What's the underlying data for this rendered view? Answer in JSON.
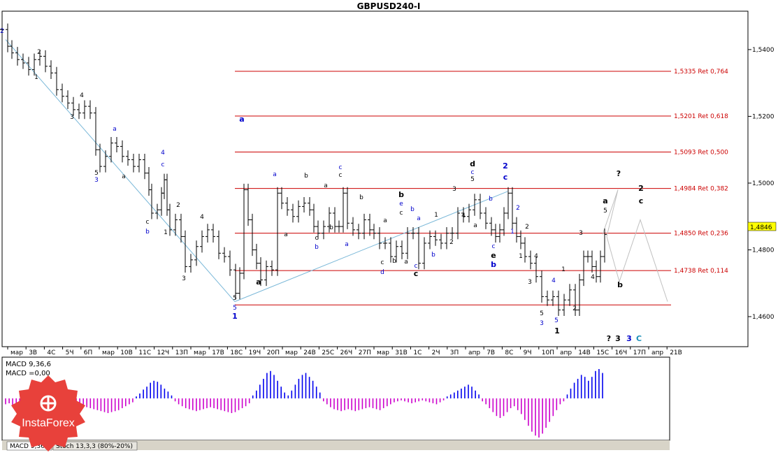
{
  "title": "GBPUSD240-I",
  "last_price": "1,4846",
  "colors": {
    "background": "#ffffff",
    "fib_line": "#cc0000",
    "trend_line": "#7ab8d8",
    "label_black": "#000000",
    "label_blue": "#0000cc",
    "label_cyan": "#1a8fb8",
    "projection": "#c0c0c0",
    "macd_positive": "#0000ee",
    "macd_negative": "#cc00cc",
    "logo": "#e8413b"
  },
  "chart_data": {
    "type": "line",
    "title": "GBPUSD240-I",
    "ylim": [
      1.451,
      1.5515
    ],
    "y_ticks": [
      "1,5400",
      "1,5200",
      "1,5000",
      "1,4800",
      "1,4600"
    ],
    "y_tick_values": [
      1.54,
      1.52,
      1.5,
      1.48,
      1.46
    ],
    "x_tick_labels": [
      "мар",
      "3В",
      "4С",
      "5Ч",
      "6П",
      "мар",
      "10В",
      "11С",
      "12Ч",
      "13П",
      "мар",
      "17В",
      "18С",
      "19Ч",
      "20П",
      "мар",
      "24В",
      "25С",
      "26Ч",
      "27П",
      "мар",
      "31В",
      "1С",
      "2Ч",
      "3П",
      "апр",
      "7В",
      "8С",
      "9Ч",
      "10П",
      "апр",
      "14В",
      "15С",
      "16Ч",
      "17П",
      "апр",
      "21В"
    ],
    "fib_levels": [
      {
        "value": 1.5335,
        "label": "1,5335 Ret 0,764"
      },
      {
        "value": 1.5201,
        "label": "1,5201 Ret 0,618"
      },
      {
        "value": 1.5093,
        "label": "1,5093 Ret 0,500"
      },
      {
        "value": 1.4984,
        "label": "1,4984 Ret 0,382"
      },
      {
        "value": 1.485,
        "label": "1,4850 Ret 0,236"
      },
      {
        "value": 1.4738,
        "label": "1,4738 Ret 0,114"
      },
      {
        "value": 1.4635,
        "label": ""
      }
    ],
    "price_path": [
      [
        0,
        1.546
      ],
      [
        8,
        1.541
      ],
      [
        14,
        1.539
      ],
      [
        22,
        1.537
      ],
      [
        30,
        1.536
      ],
      [
        38,
        1.534
      ],
      [
        46,
        1.537
      ],
      [
        54,
        1.538
      ],
      [
        62,
        1.535
      ],
      [
        70,
        1.533
      ],
      [
        78,
        1.528
      ],
      [
        86,
        1.526
      ],
      [
        94,
        1.524
      ],
      [
        102,
        1.522
      ],
      [
        110,
        1.521
      ],
      [
        118,
        1.523
      ],
      [
        126,
        1.521
      ],
      [
        134,
        1.51
      ],
      [
        140,
        1.505
      ],
      [
        148,
        1.508
      ],
      [
        156,
        1.512
      ],
      [
        164,
        1.511
      ],
      [
        172,
        1.508
      ],
      [
        180,
        1.507
      ],
      [
        188,
        1.505
      ],
      [
        196,
        1.507
      ],
      [
        204,
        1.503
      ],
      [
        210,
        1.498
      ],
      [
        214,
        1.491
      ],
      [
        222,
        1.492
      ],
      [
        228,
        1.497
      ],
      [
        232,
        1.501
      ],
      [
        236,
        1.492
      ],
      [
        240,
        1.486
      ],
      [
        248,
        1.489
      ],
      [
        256,
        1.484
      ],
      [
        262,
        1.475
      ],
      [
        270,
        1.477
      ],
      [
        278,
        1.481
      ],
      [
        286,
        1.484
      ],
      [
        294,
        1.486
      ],
      [
        302,
        1.484
      ],
      [
        310,
        1.479
      ],
      [
        318,
        1.478
      ],
      [
        326,
        1.474
      ],
      [
        334,
        1.467
      ],
      [
        340,
        1.473
      ],
      [
        346,
        1.498
      ],
      [
        352,
        1.489
      ],
      [
        358,
        1.48
      ],
      [
        364,
        1.476
      ],
      [
        370,
        1.471
      ],
      [
        378,
        1.475
      ],
      [
        386,
        1.474
      ],
      [
        394,
        1.497
      ],
      [
        400,
        1.494
      ],
      [
        408,
        1.492
      ],
      [
        416,
        1.49
      ],
      [
        424,
        1.493
      ],
      [
        432,
        1.494
      ],
      [
        440,
        1.492
      ],
      [
        446,
        1.487
      ],
      [
        452,
        1.485
      ],
      [
        460,
        1.487
      ],
      [
        468,
        1.491
      ],
      [
        476,
        1.487
      ],
      [
        482,
        1.487
      ],
      [
        488,
        1.497
      ],
      [
        494,
        1.488
      ],
      [
        502,
        1.486
      ],
      [
        510,
        1.485
      ],
      [
        518,
        1.489
      ],
      [
        526,
        1.486
      ],
      [
        532,
        1.485
      ],
      [
        540,
        1.482
      ],
      [
        548,
        1.482
      ],
      [
        556,
        1.478
      ],
      [
        564,
        1.481
      ],
      [
        572,
        1.479
      ],
      [
        580,
        1.485
      ],
      [
        588,
        1.485
      ],
      [
        596,
        1.476
      ],
      [
        604,
        1.482
      ],
      [
        612,
        1.484
      ],
      [
        620,
        1.483
      ],
      [
        628,
        1.482
      ],
      [
        636,
        1.485
      ],
      [
        644,
        1.485
      ],
      [
        652,
        1.491
      ],
      [
        660,
        1.49
      ],
      [
        668,
        1.492
      ],
      [
        676,
        1.495
      ],
      [
        684,
        1.491
      ],
      [
        692,
        1.488
      ],
      [
        700,
        1.486
      ],
      [
        706,
        1.484
      ],
      [
        712,
        1.486
      ],
      [
        718,
        1.491
      ],
      [
        724,
        1.497
      ],
      [
        730,
        1.488
      ],
      [
        736,
        1.484
      ],
      [
        742,
        1.482
      ],
      [
        748,
        1.478
      ],
      [
        756,
        1.476
      ],
      [
        764,
        1.472
      ],
      [
        772,
        1.466
      ],
      [
        780,
        1.465
      ],
      [
        788,
        1.466
      ],
      [
        796,
        1.462
      ],
      [
        804,
        1.465
      ],
      [
        812,
        1.468
      ],
      [
        820,
        1.462
      ],
      [
        826,
        1.471
      ],
      [
        832,
        1.478
      ],
      [
        838,
        1.478
      ],
      [
        844,
        1.475
      ],
      [
        850,
        1.472
      ],
      [
        856,
        1.478
      ],
      [
        862,
        1.4846
      ]
    ],
    "macd_label": "MACD 9,36,6",
    "macd_value_label": "MACD =0,00",
    "macd_values": [
      -6,
      -5,
      -7,
      -6,
      -8,
      -9,
      -10,
      -9,
      -11,
      -12,
      -13,
      -12,
      -14,
      -15,
      -16,
      -15,
      -14,
      -13,
      -12,
      -11,
      -10,
      -9,
      -8,
      -9,
      -10,
      -11,
      -12,
      -13,
      -14,
      -15,
      -14,
      -13,
      -12,
      -10,
      -8,
      -6,
      -4,
      2,
      5,
      9,
      12,
      16,
      18,
      17,
      14,
      10,
      7,
      3,
      -3,
      -6,
      -8,
      -10,
      -11,
      -12,
      -13,
      -12,
      -11,
      -10,
      -9,
      -10,
      -11,
      -12,
      -13,
      -14,
      -15,
      -14,
      -12,
      -10,
      -8,
      -5,
      3,
      8,
      14,
      20,
      26,
      28,
      24,
      18,
      12,
      6,
      3,
      8,
      14,
      20,
      24,
      26,
      22,
      18,
      12,
      6,
      -3,
      -6,
      -9,
      -11,
      -12,
      -13,
      -12,
      -11,
      -12,
      -13,
      -12,
      -11,
      -10,
      -9,
      -10,
      -11,
      -12,
      -10,
      -8,
      -6,
      -4,
      -3,
      -2,
      -3,
      -4,
      -5,
      -4,
      -3,
      -2,
      -3,
      -4,
      -5,
      -6,
      -4,
      -2,
      2,
      4,
      6,
      8,
      10,
      12,
      14,
      12,
      8,
      4,
      -3,
      -6,
      -10,
      -14,
      -18,
      -20,
      -18,
      -14,
      -10,
      -8,
      -12,
      -16,
      -22,
      -28,
      -34,
      -38,
      -40,
      -36,
      -30,
      -24,
      -18,
      -12,
      -6,
      -3,
      4,
      10,
      16,
      20,
      24,
      22,
      18,
      22,
      28,
      30,
      26
    ],
    "indicator_tabs": [
      "MACD 9,36,6",
      "Stoch 13,3,3 (80%-20%)"
    ]
  },
  "wave_labels": [
    {
      "t": "2",
      "c": "blue",
      "x": 3,
      "y": 47,
      "b": false
    },
    {
      "t": "2",
      "c": "black",
      "x": 56,
      "y": 77,
      "b": false
    },
    {
      "t": "1",
      "c": "black",
      "x": 52,
      "y": 113,
      "b": false
    },
    {
      "t": "4",
      "c": "black",
      "x": 117,
      "y": 139,
      "b": false
    },
    {
      "t": "3",
      "c": "black",
      "x": 103,
      "y": 170,
      "b": false
    },
    {
      "t": "a",
      "c": "blue",
      "x": 164,
      "y": 187,
      "b": false
    },
    {
      "t": "5",
      "c": "black",
      "x": 138,
      "y": 250,
      "b": false
    },
    {
      "t": "3",
      "c": "blue",
      "x": 138,
      "y": 260,
      "b": false
    },
    {
      "t": "a",
      "c": "black",
      "x": 177,
      "y": 255,
      "b": false
    },
    {
      "t": "4",
      "c": "blue",
      "x": 233,
      "y": 221,
      "b": false
    },
    {
      "t": "c",
      "c": "blue",
      "x": 233,
      "y": 238,
      "b": false
    },
    {
      "t": "2",
      "c": "black",
      "x": 255,
      "y": 296,
      "b": false
    },
    {
      "t": "c",
      "c": "black",
      "x": 211,
      "y": 320,
      "b": false
    },
    {
      "t": "b",
      "c": "blue",
      "x": 211,
      "y": 334,
      "b": false
    },
    {
      "t": "1",
      "c": "black",
      "x": 237,
      "y": 335,
      "b": false
    },
    {
      "t": "4",
      "c": "black",
      "x": 289,
      "y": 313,
      "b": false
    },
    {
      "t": "3",
      "c": "black",
      "x": 263,
      "y": 401,
      "b": false
    },
    {
      "t": "a",
      "c": "blue",
      "x": 346,
      "y": 174,
      "b": true
    },
    {
      "t": "5",
      "c": "black",
      "x": 336,
      "y": 429,
      "b": false
    },
    {
      "t": "5",
      "c": "blue",
      "x": 336,
      "y": 443,
      "b": false
    },
    {
      "t": "1",
      "c": "blue",
      "x": 336,
      "y": 456,
      "b": true
    },
    {
      "t": "a",
      "c": "black",
      "x": 370,
      "y": 407,
      "b": true
    },
    {
      "t": "a",
      "c": "blue",
      "x": 393,
      "y": 252,
      "b": false
    },
    {
      "t": "b",
      "c": "black",
      "x": 438,
      "y": 254,
      "b": false
    },
    {
      "t": "a",
      "c": "black",
      "x": 409,
      "y": 338,
      "b": false
    },
    {
      "t": "c",
      "c": "black",
      "x": 453,
      "y": 343,
      "b": false
    },
    {
      "t": "b",
      "c": "blue",
      "x": 453,
      "y": 356,
      "b": false
    },
    {
      "t": "a",
      "c": "black",
      "x": 466,
      "y": 268,
      "b": false
    },
    {
      "t": "c",
      "c": "blue",
      "x": 487,
      "y": 242,
      "b": false
    },
    {
      "t": "c",
      "c": "black",
      "x": 487,
      "y": 253,
      "b": false
    },
    {
      "t": "b",
      "c": "black",
      "x": 474,
      "y": 328,
      "b": false
    },
    {
      "t": "a",
      "c": "blue",
      "x": 496,
      "y": 352,
      "b": false
    },
    {
      "t": "b",
      "c": "black",
      "x": 517,
      "y": 285,
      "b": false
    },
    {
      "t": "a",
      "c": "black",
      "x": 551,
      "y": 318,
      "b": false
    },
    {
      "t": "c",
      "c": "black",
      "x": 547,
      "y": 378,
      "b": false
    },
    {
      "t": "d",
      "c": "blue",
      "x": 547,
      "y": 392,
      "b": false
    },
    {
      "t": "b",
      "c": "black",
      "x": 564,
      "y": 376,
      "b": false
    },
    {
      "t": "b",
      "c": "black",
      "x": 574,
      "y": 282,
      "b": true
    },
    {
      "t": "e",
      "c": "blue",
      "x": 574,
      "y": 294,
      "b": false
    },
    {
      "t": "c",
      "c": "black",
      "x": 574,
      "y": 307,
      "b": false
    },
    {
      "t": "b",
      "c": "blue",
      "x": 590,
      "y": 302,
      "b": false
    },
    {
      "t": "a",
      "c": "blue",
      "x": 599,
      "y": 315,
      "b": false
    },
    {
      "t": "1",
      "c": "black",
      "x": 624,
      "y": 310,
      "b": false
    },
    {
      "t": "a",
      "c": "black",
      "x": 581,
      "y": 377,
      "b": false
    },
    {
      "t": "c",
      "c": "blue",
      "x": 595,
      "y": 383,
      "b": false
    },
    {
      "t": "c",
      "c": "black",
      "x": 595,
      "y": 395,
      "b": true
    },
    {
      "t": "b",
      "c": "blue",
      "x": 620,
      "y": 367,
      "b": false
    },
    {
      "t": "2",
      "c": "black",
      "x": 646,
      "y": 349,
      "b": false
    },
    {
      "t": "3",
      "c": "black",
      "x": 650,
      "y": 273,
      "b": false
    },
    {
      "t": "d",
      "c": "black",
      "x": 676,
      "y": 238,
      "b": true
    },
    {
      "t": "c",
      "c": "blue",
      "x": 676,
      "y": 249,
      "b": false
    },
    {
      "t": "5",
      "c": "black",
      "x": 676,
      "y": 259,
      "b": false
    },
    {
      "t": "4",
      "c": "black",
      "x": 663,
      "y": 311,
      "b": false
    },
    {
      "t": "a",
      "c": "black",
      "x": 680,
      "y": 325,
      "b": false
    },
    {
      "t": "b",
      "c": "blue",
      "x": 702,
      "y": 287,
      "b": false
    },
    {
      "t": "2",
      "c": "blue",
      "x": 723,
      "y": 241,
      "b": true
    },
    {
      "t": "c",
      "c": "blue",
      "x": 723,
      "y": 257,
      "b": true
    },
    {
      "t": "c",
      "c": "blue",
      "x": 706,
      "y": 355,
      "b": false
    },
    {
      "t": "e",
      "c": "black",
      "x": 706,
      "y": 369,
      "b": true
    },
    {
      "t": "b",
      "c": "blue",
      "x": 706,
      "y": 382,
      "b": true
    },
    {
      "t": "2",
      "c": "blue",
      "x": 741,
      "y": 300,
      "b": false
    },
    {
      "t": "1",
      "c": "blue",
      "x": 733,
      "y": 334,
      "b": false
    },
    {
      "t": "2",
      "c": "black",
      "x": 754,
      "y": 327,
      "b": false
    },
    {
      "t": "1",
      "c": "black",
      "x": 745,
      "y": 369,
      "b": false
    },
    {
      "t": "4",
      "c": "black",
      "x": 767,
      "y": 369,
      "b": false
    },
    {
      "t": "3",
      "c": "black",
      "x": 758,
      "y": 406,
      "b": false
    },
    {
      "t": "4",
      "c": "blue",
      "x": 792,
      "y": 404,
      "b": false
    },
    {
      "t": "1",
      "c": "black",
      "x": 806,
      "y": 388,
      "b": false
    },
    {
      "t": "5",
      "c": "black",
      "x": 775,
      "y": 451,
      "b": false
    },
    {
      "t": "3",
      "c": "blue",
      "x": 775,
      "y": 465,
      "b": false
    },
    {
      "t": "5",
      "c": "blue",
      "x": 796,
      "y": 461,
      "b": false
    },
    {
      "t": "1",
      "c": "black",
      "x": 797,
      "y": 477,
      "b": true
    },
    {
      "t": "2",
      "c": "black",
      "x": 822,
      "y": 444,
      "b": false
    },
    {
      "t": "3",
      "c": "black",
      "x": 831,
      "y": 336,
      "b": false
    },
    {
      "t": "4",
      "c": "black",
      "x": 848,
      "y": 399,
      "b": false
    },
    {
      "t": "a",
      "c": "black",
      "x": 866,
      "y": 291,
      "b": true
    },
    {
      "t": "5",
      "c": "black",
      "x": 866,
      "y": 304,
      "b": false
    },
    {
      "t": "?",
      "c": "black",
      "x": 885,
      "y": 252,
      "b": true
    },
    {
      "t": "2",
      "c": "black",
      "x": 917,
      "y": 273,
      "b": true
    },
    {
      "t": "c",
      "c": "black",
      "x": 917,
      "y": 291,
      "b": true
    },
    {
      "t": "b",
      "c": "black",
      "x": 887,
      "y": 411,
      "b": true
    },
    {
      "t": "?",
      "c": "black",
      "x": 871,
      "y": 488,
      "b": true
    },
    {
      "t": "3",
      "c": "black",
      "x": 884,
      "y": 488,
      "b": true
    },
    {
      "t": "3",
      "c": "blue",
      "x": 900,
      "y": 488,
      "b": true
    },
    {
      "t": "C",
      "c": "cyan",
      "x": 914,
      "y": 488,
      "b": true
    }
  ],
  "logo_text": "InstaForex"
}
